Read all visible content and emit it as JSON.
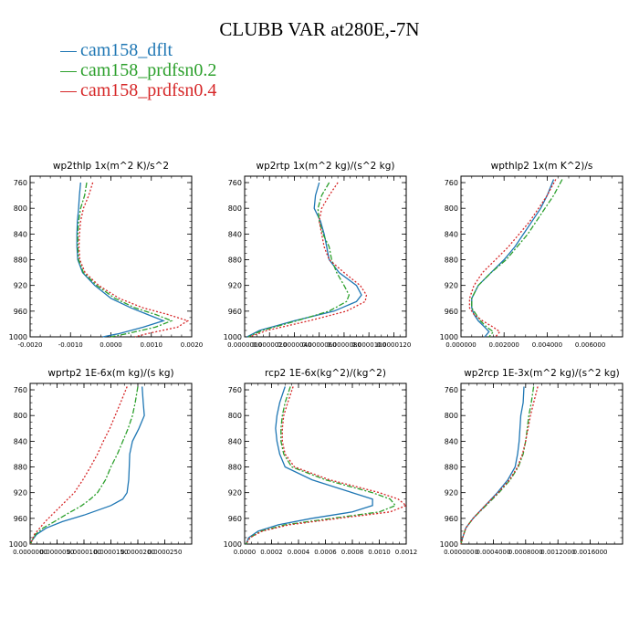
{
  "title": "CLUBB VAR at280E,-7N",
  "colors": {
    "cam158_dflt": "#1f77b4",
    "cam158_prdfsn0.2": "#2ca02c",
    "cam158_prdfsn0.4": "#d62728"
  },
  "legend": [
    "cam158_dflt",
    "cam158_prdfsn0.2",
    "cam158_prdfsn0.4"
  ],
  "chart_data": [
    {
      "type": "line",
      "title": "wp2thlp  1x(m^2 K)/s^2",
      "xlim": [
        -0.002,
        0.002
      ],
      "xticks": [
        -0.002,
        -0.001,
        0,
        0.001,
        0.002
      ],
      "xtick_labels": [
        "-0.0020",
        "-0.0010",
        "0.0000",
        "0.0010",
        "0.0020"
      ],
      "ylim": [
        1000,
        750
      ],
      "yticks": [
        760,
        800,
        840,
        880,
        920,
        960,
        1000
      ],
      "y": [
        760,
        780,
        800,
        820,
        840,
        860,
        880,
        900,
        920,
        940,
        955,
        965,
        975,
        985,
        995,
        1000
      ],
      "series": [
        {
          "name": "cam158_dflt",
          "x": [
            -0.00075,
            -0.00078,
            -0.0008,
            -0.00083,
            -0.00084,
            -0.00084,
            -0.00082,
            -0.0007,
            -0.0004,
            0.0,
            0.0005,
            0.0009,
            0.0013,
            0.0008,
            0.0002,
            -0.0002
          ]
        },
        {
          "name": "cam158_prdfsn0.2",
          "x": [
            -0.0006,
            -0.00065,
            -0.00075,
            -0.0008,
            -0.00082,
            -0.00082,
            -0.0008,
            -0.00068,
            -0.00035,
            0.0001,
            0.0006,
            0.0011,
            0.0015,
            0.0011,
            0.0004,
            0.0
          ]
        },
        {
          "name": "cam158_prdfsn0.4",
          "x": [
            -0.00045,
            -0.00055,
            -0.00068,
            -0.00075,
            -0.00078,
            -0.00079,
            -0.00077,
            -0.00064,
            -0.0003,
            0.0002,
            0.0008,
            0.0014,
            0.0019,
            0.00165,
            0.0009,
            0.0006
          ]
        }
      ]
    },
    {
      "type": "line",
      "title": "wp2rtp  1x(m^2 kg)/(s^2 kg)",
      "xlim": [
        0,
        1.3e-05
      ],
      "xticks": [
        0,
        2e-06,
        4e-06,
        6e-06,
        8e-06,
        1e-05,
        1.2e-05
      ],
      "xtick_labels": [
        "0.0000000",
        "0.0000020",
        "0.0000040",
        "0.0000060",
        "0.0000080",
        "0.0000100",
        "0.0000120"
      ],
      "ylim": [
        1000,
        750
      ],
      "yticks": [
        760,
        800,
        840,
        880,
        920,
        960,
        1000
      ],
      "y": [
        760,
        780,
        800,
        820,
        840,
        860,
        880,
        900,
        920,
        935,
        945,
        960,
        975,
        990,
        1000
      ],
      "series": [
        {
          "name": "cam158_dflt",
          "x": [
            6e-06,
            5.7e-06,
            5.6e-06,
            6.1e-06,
            6.4e-06,
            6.6e-06,
            6.8e-06,
            7.6e-06,
            9e-06,
            9.4e-06,
            9e-06,
            7.2e-06,
            4e-06,
            1.2e-06,
            2e-07
          ]
        },
        {
          "name": "cam158_prdfsn0.2",
          "x": [
            6.8e-06,
            6.2e-06,
            5.9e-06,
            6e-06,
            6.3e-06,
            6.8e-06,
            7e-06,
            7.4e-06,
            8e-06,
            8.4e-06,
            8.2e-06,
            6.8e-06,
            4.2e-06,
            1.4e-06,
            3e-07
          ]
        },
        {
          "name": "cam158_prdfsn0.4",
          "x": [
            7.5e-06,
            6.8e-06,
            6.2e-06,
            6e-06,
            6.2e-06,
            6.4e-06,
            6.8e-06,
            8e-06,
            9.3e-06,
            9.8e-06,
            9.7e-06,
            8.2e-06,
            5.2e-06,
            1.8e-06,
            4e-07
          ]
        }
      ]
    },
    {
      "type": "line",
      "title": "wpthlp2  1x(m K^2)/s",
      "xlim": [
        0,
        0.0075
      ],
      "xticks": [
        0,
        0.002,
        0.004,
        0.006
      ],
      "xtick_labels": [
        "0.000000",
        "0.002000",
        "0.004000",
        "0.006000"
      ],
      "ylim": [
        1000,
        750
      ],
      "yticks": [
        760,
        800,
        840,
        880,
        920,
        960,
        1000
      ],
      "y": [
        755,
        780,
        800,
        820,
        840,
        860,
        880,
        900,
        920,
        940,
        955,
        965,
        975,
        985,
        992,
        1000
      ],
      "series": [
        {
          "name": "cam158_dflt",
          "x": [
            0.0043,
            0.004,
            0.0037,
            0.0033,
            0.0029,
            0.0025,
            0.002,
            0.0014,
            0.0008,
            0.0005,
            0.0005,
            0.0006,
            0.0008,
            0.0011,
            0.0013,
            0.0011
          ]
        },
        {
          "name": "cam158_prdfsn0.2",
          "x": [
            0.0047,
            0.0043,
            0.0039,
            0.0035,
            0.0031,
            0.0026,
            0.0021,
            0.0014,
            0.0008,
            0.0005,
            0.0005,
            0.0007,
            0.0009,
            0.0012,
            0.0015,
            0.0013
          ]
        },
        {
          "name": "cam158_prdfsn0.4",
          "x": [
            0.0044,
            0.004,
            0.0036,
            0.0032,
            0.0027,
            0.0022,
            0.0016,
            0.001,
            0.0006,
            0.0004,
            0.0004,
            0.0006,
            0.001,
            0.0015,
            0.0018,
            0.0016
          ]
        }
      ]
    },
    {
      "type": "line",
      "title": "wprtp2  1E-6x(m kg)/(s kg)",
      "xlim": [
        0,
        3e-05
      ],
      "xticks": [
        0,
        5e-06,
        1e-05,
        1.5e-05,
        2e-05,
        2.5e-05
      ],
      "xtick_labels": [
        "0.0000000",
        "0.0000050",
        "0.0000100",
        "0.0000150",
        "0.0000200",
        "0.0000250"
      ],
      "ylim": [
        1000,
        750
      ],
      "yticks": [
        760,
        800,
        840,
        880,
        920,
        960,
        1000
      ],
      "y": [
        755,
        780,
        800,
        820,
        840,
        860,
        880,
        900,
        920,
        930,
        940,
        955,
        965,
        975,
        985,
        995,
        1000
      ],
      "series": [
        {
          "name": "cam158_dflt",
          "x": [
            2.08e-05,
            2.1e-05,
            2.12e-05,
            2.02e-05,
            1.9e-05,
            1.85e-05,
            1.84e-05,
            1.83e-05,
            1.8e-05,
            1.72e-05,
            1.5e-05,
            1e-05,
            6e-06,
            3e-06,
            1.2e-06,
            3e-07,
            1e-07
          ]
        },
        {
          "name": "cam158_prdfsn0.2",
          "x": [
            2e-05,
            1.95e-05,
            1.9e-05,
            1.82e-05,
            1.72e-05,
            1.62e-05,
            1.5e-05,
            1.4e-05,
            1.25e-05,
            1.12e-05,
            9.6e-06,
            6.5e-06,
            4.5e-06,
            2.4e-06,
            1e-06,
            3e-07,
            1e-07
          ]
        },
        {
          "name": "cam158_prdfsn0.4",
          "x": [
            1.8e-05,
            1.68e-05,
            1.58e-05,
            1.48e-05,
            1.36e-05,
            1.25e-05,
            1.12e-05,
            9.8e-06,
            8.2e-06,
            7e-06,
            5.8e-06,
            4e-06,
            2.8e-06,
            1.8e-06,
            8e-07,
            3e-07,
            1e-07
          ]
        }
      ]
    },
    {
      "type": "line",
      "title": "rcp2  1E-6x(kg^2)/(kg^2)",
      "xlim": [
        0,
        0.0012
      ],
      "xticks": [
        0,
        0.0002,
        0.0004,
        0.0006,
        0.0008,
        0.001,
        0.0012
      ],
      "xtick_labels": [
        "0.0000",
        "0.0002",
        "0.0004",
        "0.0006",
        "0.0008",
        "0.0010",
        "0.0012"
      ],
      "ylim": [
        1000,
        750
      ],
      "yticks": [
        760,
        800,
        840,
        880,
        920,
        960,
        1000
      ],
      "y": [
        755,
        780,
        800,
        820,
        840,
        860,
        880,
        900,
        920,
        930,
        940,
        950,
        960,
        970,
        980,
        990,
        1000
      ],
      "series": [
        {
          "name": "cam158_dflt",
          "x": [
            0.0003,
            0.00026,
            0.00024,
            0.00023,
            0.00024,
            0.00026,
            0.0003,
            0.0005,
            0.0008,
            0.00095,
            0.00095,
            0.0008,
            0.0005,
            0.00025,
            0.0001,
            3e-05,
            1e-05
          ]
        },
        {
          "name": "cam158_prdfsn0.2",
          "x": [
            0.00034,
            0.0003,
            0.00028,
            0.00027,
            0.00027,
            0.00029,
            0.00035,
            0.0006,
            0.00095,
            0.00108,
            0.00112,
            0.001,
            0.00065,
            0.0003,
            0.00012,
            4e-05,
            1e-05
          ]
        },
        {
          "name": "cam158_prdfsn0.4",
          "x": [
            0.00036,
            0.00032,
            0.00029,
            0.00028,
            0.00028,
            0.0003,
            0.00037,
            0.00063,
            0.001,
            0.00114,
            0.0012,
            0.00108,
            0.0007,
            0.00033,
            0.00013,
            4e-05,
            1e-05
          ]
        }
      ]
    },
    {
      "type": "line",
      "title": "wp2rcp  1E-3x(m^2 kg)/(s^2 kg)",
      "xlim": [
        0,
        0.002
      ],
      "xticks": [
        0,
        0.0004,
        0.0008,
        0.0012,
        0.0016
      ],
      "xtick_labels": [
        "0.0000000",
        "0.0004000",
        "0.0008000",
        "0.0012000",
        "0.0016000"
      ],
      "ylim": [
        1000,
        750
      ],
      "yticks": [
        760,
        800,
        840,
        880,
        920,
        960,
        1000
      ],
      "y": [
        755,
        780,
        800,
        820,
        840,
        860,
        880,
        900,
        920,
        940,
        960,
        975,
        990,
        1000
      ],
      "series": [
        {
          "name": "cam158_dflt",
          "x": [
            0.00078,
            0.00077,
            0.00074,
            0.00073,
            0.00072,
            0.0007,
            0.00067,
            0.00058,
            0.00045,
            0.0003,
            0.00015,
            6e-05,
            2e-05,
            0.0
          ]
        },
        {
          "name": "cam158_prdfsn0.2",
          "x": [
            0.0009,
            0.00087,
            0.00084,
            0.00082,
            0.0008,
            0.00077,
            0.00071,
            0.00061,
            0.00047,
            0.00031,
            0.00015,
            6e-05,
            2e-05,
            0.0
          ]
        },
        {
          "name": "cam158_prdfsn0.4",
          "x": [
            0.00095,
            0.0009,
            0.00086,
            0.00083,
            0.0008,
            0.00076,
            0.0007,
            0.0006,
            0.00046,
            0.0003,
            0.00015,
            6e-05,
            2e-05,
            0.0
          ]
        }
      ]
    }
  ]
}
